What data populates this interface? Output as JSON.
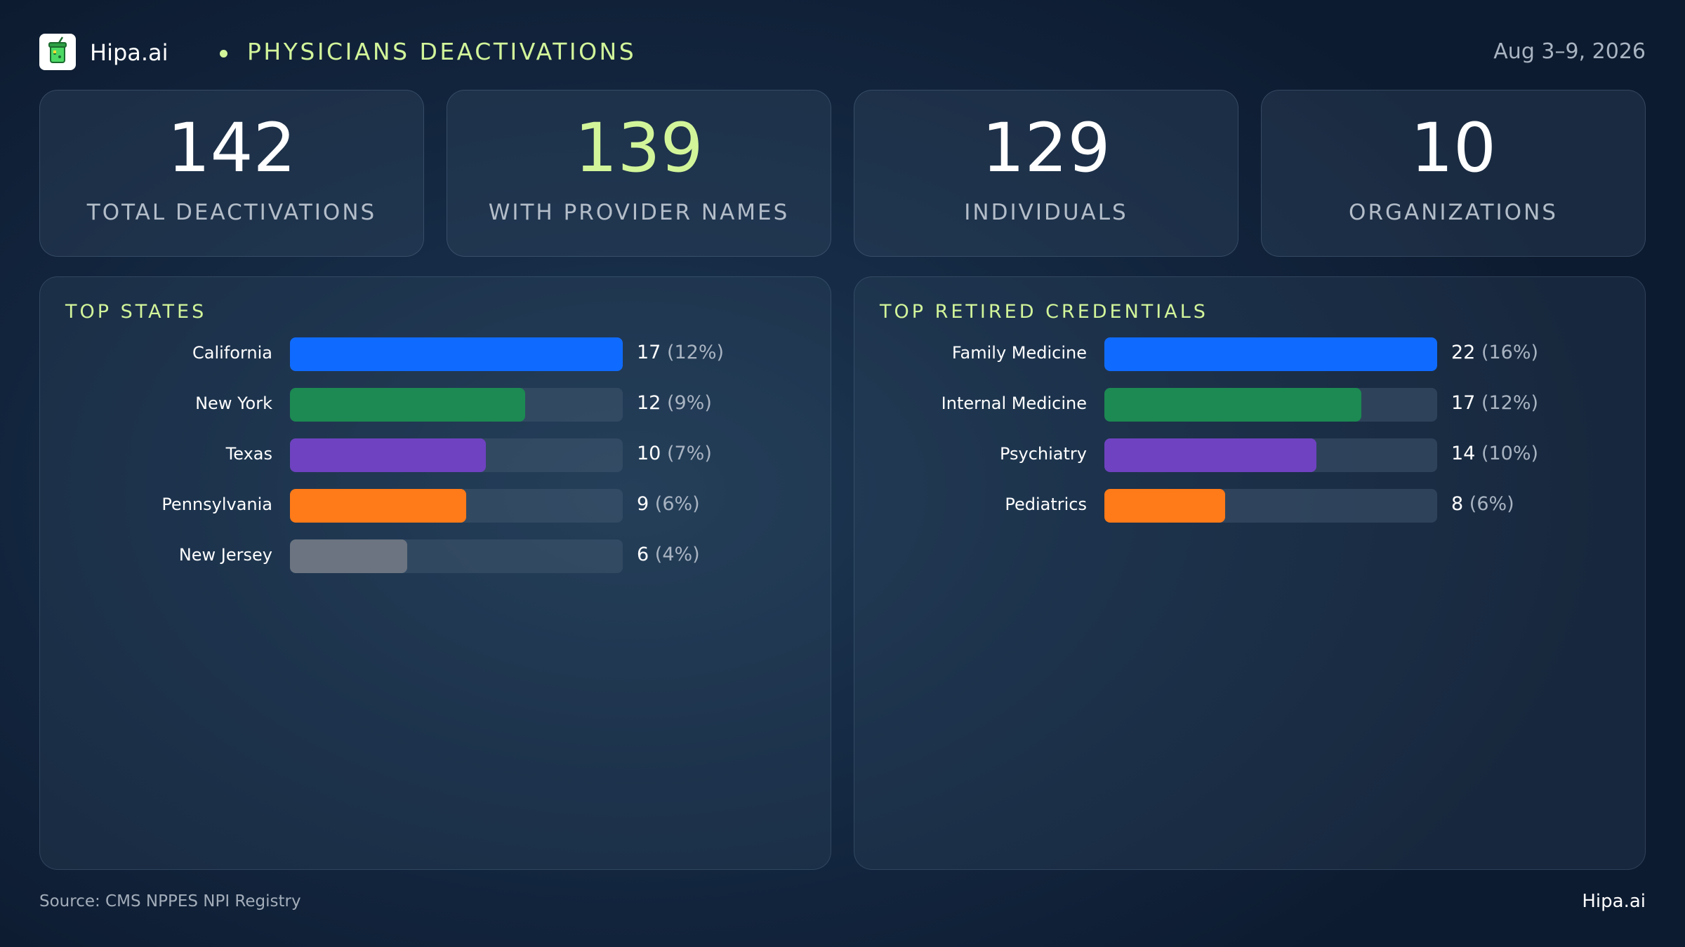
{
  "header": {
    "brand": "Hipa.ai",
    "title": "PHYSICIANS DEACTIVATIONS",
    "date_range": "Aug 3–9, 2026"
  },
  "kpis": [
    {
      "value": "142",
      "label": "TOTAL DEACTIVATIONS",
      "accent": false
    },
    {
      "value": "139",
      "label": "WITH PROVIDER NAMES",
      "accent": true
    },
    {
      "value": "129",
      "label": "INDIVIDUALS",
      "accent": false
    },
    {
      "value": "10",
      "label": "ORGANIZATIONS",
      "accent": false
    }
  ],
  "colors": {
    "accent": "#d2f59a",
    "bars": [
      "#0f6bff",
      "#1c8a52",
      "#6f42c1",
      "#ff7a18",
      "#6b7480"
    ]
  },
  "chart_data": [
    {
      "type": "bar",
      "orientation": "horizontal",
      "title": "TOP STATES",
      "categories": [
        "California",
        "New York",
        "Texas",
        "Pennsylvania",
        "New Jersey"
      ],
      "values": [
        17,
        12,
        10,
        9,
        6
      ],
      "value_labels": [
        "17",
        "12",
        "10",
        "9",
        "6"
      ],
      "percent_labels": [
        "(12%)",
        "(9%)",
        "(7%)",
        "(6%)",
        "(4%)"
      ],
      "xlim": [
        0,
        17
      ],
      "grid": false
    },
    {
      "type": "bar",
      "orientation": "horizontal",
      "title": "TOP RETIRED CREDENTIALS",
      "categories": [
        "Family Medicine",
        "Internal Medicine",
        "Psychiatry",
        "Pediatrics"
      ],
      "values": [
        22,
        17,
        14,
        8
      ],
      "value_labels": [
        "22",
        "17",
        "14",
        "8"
      ],
      "percent_labels": [
        "(16%)",
        "(12%)",
        "(10%)",
        "(6%)"
      ],
      "xlim": [
        0,
        22
      ],
      "grid": false
    }
  ],
  "footer": {
    "source": "Source: CMS NPPES NPI Registry",
    "brand": "Hipa.ai"
  }
}
